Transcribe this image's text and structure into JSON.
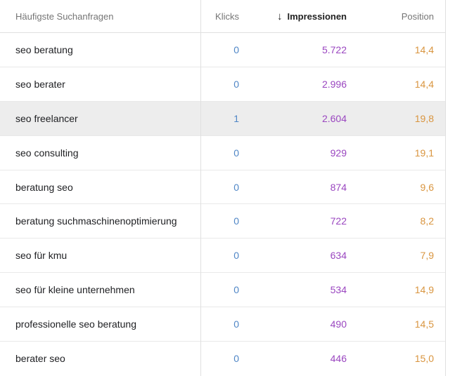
{
  "table": {
    "columns": {
      "query_label": "Häufigste Suchanfragen",
      "klicks_label": "Klicks",
      "impressionen_label": "Impressionen",
      "position_label": "Position"
    },
    "sort": {
      "column": "Impressionen",
      "direction": "descending",
      "icon": "↓"
    },
    "rows": [
      {
        "query": "seo beratung",
        "klicks": "0",
        "impressionen": "5.722",
        "position": "14,4",
        "highlighted": false
      },
      {
        "query": "seo berater",
        "klicks": "0",
        "impressionen": "2.996",
        "position": "14,4",
        "highlighted": false
      },
      {
        "query": "seo freelancer",
        "klicks": "1",
        "impressionen": "2.604",
        "position": "19,8",
        "highlighted": true
      },
      {
        "query": "seo consulting",
        "klicks": "0",
        "impressionen": "929",
        "position": "19,1",
        "highlighted": false
      },
      {
        "query": "beratung seo",
        "klicks": "0",
        "impressionen": "874",
        "position": "9,6",
        "highlighted": false
      },
      {
        "query": "beratung suchmaschinenoptimierung",
        "klicks": "0",
        "impressionen": "722",
        "position": "8,2",
        "highlighted": false
      },
      {
        "query": "seo für kmu",
        "klicks": "0",
        "impressionen": "634",
        "position": "7,9",
        "highlighted": false
      },
      {
        "query": "seo für kleine unternehmen",
        "klicks": "0",
        "impressionen": "534",
        "position": "14,9",
        "highlighted": false
      },
      {
        "query": "professionelle seo beratung",
        "klicks": "0",
        "impressionen": "490",
        "position": "14,5",
        "highlighted": false
      },
      {
        "query": "berater seo",
        "klicks": "0",
        "impressionen": "446",
        "position": "15,0",
        "highlighted": false
      }
    ]
  },
  "colors": {
    "klicks_value": "#4f86c6",
    "impressionen_value": "#9a46c0",
    "position_value": "#d9953f",
    "header_text": "#757575",
    "sorted_header_text": "#212121",
    "row_divider": "#e9e9e9",
    "column_divider": "#e0e0e0",
    "highlight_row_bg": "#ededed"
  }
}
